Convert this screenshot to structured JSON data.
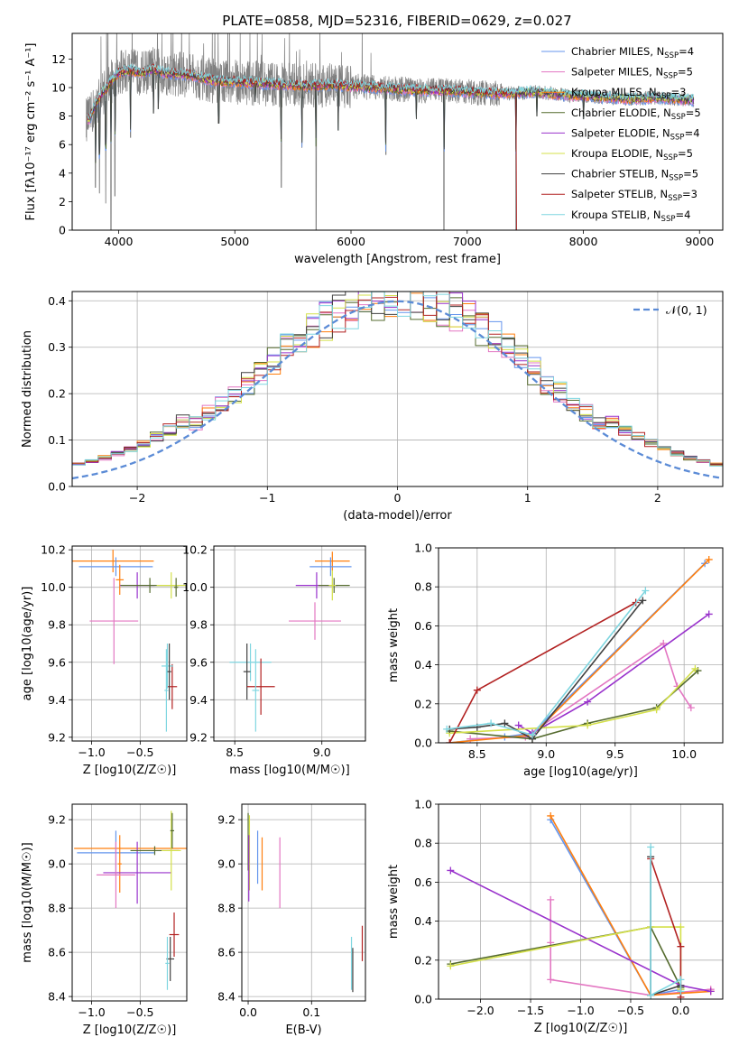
{
  "figure_title": "PLATE=0858, MJD=52316, FIBERID=0629, z=0.027",
  "colors": {
    "Chabrier MILES": "#6495ed",
    "Salpeter MILES": "#e377c2",
    "Kroupa MILES": "#ff7f0e",
    "Chabrier ELODIE": "#556b2f",
    "Salpeter ELODIE": "#9932cc",
    "Kroupa ELODIE": "#d4e04a",
    "Chabrier STELIB": "#404040",
    "Salpeter STELIB": "#b22222",
    "Kroupa STELIB": "#7fd6e0",
    "observed": "#808080",
    "normal": "#5b8bd6"
  },
  "chart_data": [
    {
      "type": "line",
      "panel": "spectrum",
      "xlabel": "wavelength [Angstrom, rest frame]",
      "ylabel": "Flux [fλ10⁻¹⁷ erg cm⁻² s⁻¹ A⁻¹]",
      "xlim": [
        3600,
        9200
      ],
      "ylim": [
        0,
        13.8
      ],
      "xticks": [
        4000,
        5000,
        6000,
        7000,
        8000,
        9000
      ],
      "yticks": [
        0,
        2,
        4,
        6,
        8,
        10,
        12
      ],
      "grid": false,
      "legend_position": "top-right",
      "legend": [
        {
          "label": "Chabrier MILES, N",
          "sub": "SSP",
          "tail": "=4"
        },
        {
          "label": "Salpeter MILES, N",
          "sub": "SSP",
          "tail": "=5"
        },
        {
          "label": "Kroupa MILES, N",
          "sub": "SSP",
          "tail": "=3"
        },
        {
          "label": "Chabrier ELODIE, N",
          "sub": "SSP",
          "tail": "=5"
        },
        {
          "label": "Salpeter ELODIE, N",
          "sub": "SSP",
          "tail": "=4"
        },
        {
          "label": "Kroupa ELODIE, N",
          "sub": "SSP",
          "tail": "=5"
        },
        {
          "label": "Chabrier STELIB, N",
          "sub": "SSP",
          "tail": "=5"
        },
        {
          "label": "Salpeter STELIB, N",
          "sub": "SSP",
          "tail": "=3"
        },
        {
          "label": "Kroupa STELIB, N",
          "sub": "SSP",
          "tail": "=4"
        }
      ],
      "continuum": {
        "x": [
          3750,
          3800,
          3850,
          3900,
          3950,
          4000,
          4100,
          4200,
          4300,
          4400,
          4600,
          4800,
          5000,
          5200,
          5400,
          5600,
          5800,
          6000,
          6200,
          6400,
          6600,
          6800,
          7000,
          7200,
          7400,
          7600,
          7800,
          8000,
          8200,
          8400,
          8600,
          8800,
          9000
        ],
        "y": [
          7.8,
          8.8,
          9.5,
          10.0,
          10.6,
          11.0,
          11.2,
          11.0,
          11.3,
          11.0,
          10.9,
          10.5,
          10.4,
          10.3,
          10.2,
          10.1,
          10.2,
          10.1,
          10.0,
          9.9,
          9.8,
          9.8,
          9.7,
          9.6,
          9.6,
          9.7,
          9.5,
          9.4,
          9.3,
          9.2,
          9.3,
          9.2,
          9.1
        ]
      },
      "absorption_dips": [
        {
          "x": 3800,
          "y": 3.0
        },
        {
          "x": 3835,
          "y": 2.6
        },
        {
          "x": 3889,
          "y": 1.9
        },
        {
          "x": 3934,
          "y": 0.0
        },
        {
          "x": 3968,
          "y": 2.4
        },
        {
          "x": 4102,
          "y": 6.5
        },
        {
          "x": 4300,
          "y": 8.2
        },
        {
          "x": 4340,
          "y": 8.5
        },
        {
          "x": 4861,
          "y": 7.5
        },
        {
          "x": 5175,
          "y": 9.0
        },
        {
          "x": 5400,
          "y": 3.0
        },
        {
          "x": 5577,
          "y": 5.8
        },
        {
          "x": 5700,
          "y": 0.0
        },
        {
          "x": 5890,
          "y": 7.0
        },
        {
          "x": 6300,
          "y": 5.3
        },
        {
          "x": 6563,
          "y": 7.8
        },
        {
          "x": 6800,
          "y": 0.0
        },
        {
          "x": 7420,
          "y": 0.0
        },
        {
          "x": 7600,
          "y": 8.0
        },
        {
          "x": 8000,
          "y": 7.8
        }
      ]
    },
    {
      "type": "histogram",
      "panel": "residuals",
      "xlabel": "(data-model)/error",
      "ylabel": "Normed distribution",
      "xlim": [
        -2.5,
        2.5
      ],
      "ylim": [
        0,
        0.42
      ],
      "xticks": [
        -2,
        -1,
        0,
        1,
        2
      ],
      "yticks": [
        0.0,
        0.1,
        0.2,
        0.3,
        0.4
      ],
      "grid": true,
      "legend_position": "top-right",
      "legend": "𝒩(0, 1)",
      "bin_width": 0.1,
      "reference": "normal pdf mean 0 sigma 1"
    },
    {
      "type": "errorbar",
      "panel": "age-vs-Z",
      "xlabel": "Z [log10(Z/Z☉)]",
      "ylabel": "age [log10(age/yr)]",
      "xlim": [
        -1.2,
        -0.02
      ],
      "ylim": [
        9.18,
        10.22
      ],
      "xticks": [
        -1.0,
        -0.5
      ],
      "yticks": [
        9.2,
        9.4,
        9.6,
        9.8,
        10.0,
        10.2
      ],
      "grid": true,
      "points": [
        {
          "model": "Kroupa MILES",
          "x": -0.78,
          "xerr": 0.42,
          "y": 10.14,
          "yerr": 0.06
        },
        {
          "model": "Chabrier MILES",
          "x": -0.75,
          "xerr": 0.38,
          "y": 10.11,
          "yerr": 0.05
        },
        {
          "model": "Kroupa MILES",
          "x": -0.71,
          "xerr": 0.04,
          "y": 10.04,
          "yerr": 0.08
        },
        {
          "model": "Salpeter ELODIE",
          "x": -0.53,
          "xerr": 0.18,
          "y": 10.01,
          "yerr": 0.07
        },
        {
          "model": "Chabrier ELODIE",
          "x": -0.4,
          "xerr": 0.3,
          "y": 10.01,
          "yerr": 0.04
        },
        {
          "model": "Kroupa ELODIE",
          "x": -0.18,
          "xerr": 0.15,
          "y": 10.01,
          "yerr": 0.07
        },
        {
          "model": "Chabrier ELODIE",
          "x": -0.13,
          "xerr": 0.02,
          "y": 10.0,
          "yerr": 0.05
        },
        {
          "model": "Salpeter MILES",
          "x": -0.77,
          "xerr": 0.25,
          "y": 9.82,
          "yerr": 0.23
        },
        {
          "model": "Salpeter STELIB",
          "x": -0.17,
          "xerr": 0.05,
          "y": 9.47,
          "yerr": 0.12
        },
        {
          "model": "Kroupa STELIB",
          "x": -0.22,
          "xerr": 0.06,
          "y": 9.58,
          "yerr": 0.12
        },
        {
          "model": "Chabrier STELIB",
          "x": -0.2,
          "xerr": 0.02,
          "y": 9.55,
          "yerr": 0.15
        },
        {
          "model": "Kroupa STELIB",
          "x": -0.23,
          "xerr": 0.02,
          "y": 9.45,
          "yerr": 0.22
        }
      ]
    },
    {
      "type": "errorbar",
      "panel": "age-vs-mass",
      "xlabel": "mass [log10(M/M☉)]",
      "ylabel": "",
      "xlim": [
        8.38,
        9.25
      ],
      "ylim": [
        9.18,
        10.22
      ],
      "xticks": [
        8.5,
        9.0
      ],
      "yticks": [
        9.2,
        9.4,
        9.6,
        9.8,
        10.0,
        10.2
      ],
      "grid": true,
      "points": [
        {
          "model": "Kroupa MILES",
          "x": 9.06,
          "xerr": 0.1,
          "y": 10.14,
          "yerr": 0.05
        },
        {
          "model": "Chabrier MILES",
          "x": 9.05,
          "xerr": 0.12,
          "y": 10.11,
          "yerr": 0.05
        },
        {
          "model": "Salpeter ELODIE",
          "x": 8.97,
          "xerr": 0.12,
          "y": 10.01,
          "yerr": 0.07
        },
        {
          "model": "Chabrier ELODIE",
          "x": 9.07,
          "xerr": 0.09,
          "y": 10.01,
          "yerr": 0.04
        },
        {
          "model": "Kroupa ELODIE",
          "x": 9.06,
          "xerr": 0.02,
          "y": 10.01,
          "yerr": 0.08
        },
        {
          "model": "Salpeter MILES",
          "x": 8.96,
          "xerr": 0.15,
          "y": 9.82,
          "yerr": 0.1
        },
        {
          "model": "Kroupa STELIB",
          "x": 8.59,
          "xerr": 0.12,
          "y": 9.6,
          "yerr": 0.1
        },
        {
          "model": "Chabrier STELIB",
          "x": 8.57,
          "xerr": 0.02,
          "y": 9.55,
          "yerr": 0.15
        },
        {
          "model": "Salpeter STELIB",
          "x": 8.65,
          "xerr": 0.08,
          "y": 9.47,
          "yerr": 0.15
        },
        {
          "model": "Kroupa STELIB",
          "x": 8.62,
          "xerr": 0.02,
          "y": 9.45,
          "yerr": 0.22
        }
      ]
    },
    {
      "type": "line",
      "panel": "weight-vs-age",
      "xlabel": "age [log10(age/yr)]",
      "ylabel": "mass weight",
      "xlim": [
        8.22,
        10.28
      ],
      "ylim": [
        0,
        1.0
      ],
      "xticks": [
        8.5,
        9.0,
        9.5,
        10.0
      ],
      "yticks": [
        0.0,
        0.2,
        0.4,
        0.6,
        0.8,
        1.0
      ],
      "grid": true,
      "series": [
        {
          "model": "Chabrier MILES",
          "x": [
            8.3,
            8.7,
            8.9,
            10.15
          ],
          "y": [
            0.0,
            0.03,
            0.05,
            0.92
          ]
        },
        {
          "model": "Salpeter MILES",
          "x": [
            8.45,
            8.85,
            9.85,
            9.95,
            10.05
          ],
          "y": [
            0.02,
            0.03,
            0.51,
            0.29,
            0.18
          ]
        },
        {
          "model": "Kroupa MILES",
          "x": [
            8.3,
            8.9,
            10.18
          ],
          "y": [
            0.0,
            0.04,
            0.94
          ]
        },
        {
          "model": "Chabrier ELODIE",
          "x": [
            8.3,
            8.9,
            9.3,
            9.8,
            10.1
          ],
          "y": [
            0.06,
            0.02,
            0.1,
            0.18,
            0.37
          ]
        },
        {
          "model": "Salpeter ELODIE",
          "x": [
            8.8,
            8.9,
            9.3,
            10.18
          ],
          "y": [
            0.09,
            0.05,
            0.21,
            0.66
          ]
        },
        {
          "model": "Kroupa ELODIE",
          "x": [
            8.3,
            9.3,
            9.8,
            10.08
          ],
          "y": [
            0.05,
            0.09,
            0.17,
            0.38
          ]
        },
        {
          "model": "Chabrier STELIB",
          "x": [
            8.3,
            8.5,
            8.7,
            8.9,
            9.7
          ],
          "y": [
            0.07,
            0.08,
            0.1,
            0.02,
            0.73
          ]
        },
        {
          "model": "Salpeter STELIB",
          "x": [
            8.3,
            8.5,
            9.65
          ],
          "y": [
            0.0,
            0.27,
            0.72
          ]
        },
        {
          "model": "Kroupa STELIB",
          "x": [
            8.28,
            8.6,
            8.9,
            9.72
          ],
          "y": [
            0.07,
            0.1,
            0.04,
            0.78
          ]
        }
      ]
    },
    {
      "type": "errorbar",
      "panel": "mass-vs-Z",
      "xlabel": "Z [log10(Z/Z☉)]",
      "ylabel": "mass [log10(M/M☉)]",
      "xlim": [
        -1.2,
        -0.02
      ],
      "ylim": [
        8.38,
        9.27
      ],
      "xticks": [
        -1.0,
        -0.5
      ],
      "yticks": [
        8.4,
        8.6,
        8.8,
        9.0,
        9.2
      ],
      "grid": true,
      "points": [
        {
          "model": "Kroupa MILES",
          "x": -0.6,
          "xerr": 0.58,
          "y": 9.07,
          "yerr": 0.0
        },
        {
          "model": "Chabrier MILES",
          "x": -0.75,
          "xerr": 0.4,
          "y": 9.05,
          "yerr": 0.1
        },
        {
          "model": "Kroupa MILES",
          "x": -0.71,
          "xerr": 0.02,
          "y": 9.0,
          "yerr": 0.13
        },
        {
          "model": "Salpeter ELODIE",
          "x": -0.53,
          "xerr": 0.35,
          "y": 8.96,
          "yerr": 0.14
        },
        {
          "model": "Salpeter MILES",
          "x": -0.75,
          "xerr": 0.2,
          "y": 8.95,
          "yerr": 0.15
        },
        {
          "model": "Chabrier ELODIE",
          "x": -0.35,
          "xerr": 0.25,
          "y": 9.06,
          "yerr": 0.02
        },
        {
          "model": "Kroupa ELODIE",
          "x": -0.18,
          "xerr": 0.1,
          "y": 9.06,
          "yerr": 0.18
        },
        {
          "model": "Chabrier ELODIE",
          "x": -0.17,
          "xerr": 0.02,
          "y": 9.15,
          "yerr": 0.08
        },
        {
          "model": "Salpeter STELIB",
          "x": -0.15,
          "xerr": 0.05,
          "y": 8.68,
          "yerr": 0.1
        },
        {
          "model": "Chabrier STELIB",
          "x": -0.19,
          "xerr": 0.04,
          "y": 8.57,
          "yerr": 0.1
        },
        {
          "model": "Kroupa STELIB",
          "x": -0.22,
          "xerr": 0.02,
          "y": 8.55,
          "yerr": 0.12
        }
      ]
    },
    {
      "type": "errorbar",
      "panel": "mass-vs-EBV",
      "xlabel": "E(B-V)",
      "ylabel": "",
      "xlim": [
        -0.01,
        0.185
      ],
      "ylim": [
        8.38,
        9.27
      ],
      "xticks": [
        0.0,
        0.1
      ],
      "yticks": [
        8.4,
        8.6,
        8.8,
        9.0,
        9.2
      ],
      "grid": true,
      "points": [
        {
          "model": "Chabrier ELODIE",
          "x": 0.0,
          "xerr": 0.0,
          "y": 9.1,
          "yerr": 0.13
        },
        {
          "model": "Kroupa ELODIE",
          "x": 0.002,
          "xerr": 0.0,
          "y": 9.05,
          "yerr": 0.17
        },
        {
          "model": "Salpeter ELODIE",
          "x": 0.001,
          "xerr": 0.0,
          "y": 8.98,
          "yerr": 0.15
        },
        {
          "model": "Chabrier MILES",
          "x": 0.015,
          "xerr": 0.0,
          "y": 9.03,
          "yerr": 0.12
        },
        {
          "model": "Kroupa MILES",
          "x": 0.022,
          "xerr": 0.0,
          "y": 9.0,
          "yerr": 0.12
        },
        {
          "model": "Salpeter MILES",
          "x": 0.05,
          "xerr": 0.0,
          "y": 8.96,
          "yerr": 0.16
        },
        {
          "model": "Kroupa STELIB",
          "x": 0.163,
          "xerr": 0.0,
          "y": 8.55,
          "yerr": 0.12
        },
        {
          "model": "Chabrier STELIB",
          "x": 0.165,
          "xerr": 0.0,
          "y": 8.52,
          "yerr": 0.1
        },
        {
          "model": "Salpeter STELIB",
          "x": 0.18,
          "xerr": 0.0,
          "y": 8.64,
          "yerr": 0.08
        }
      ]
    },
    {
      "type": "line",
      "panel": "weight-vs-Z",
      "xlabel": "Z [log10(Z/Z☉)]",
      "ylabel": "mass weight",
      "xlim": [
        -2.42,
        0.42
      ],
      "ylim": [
        0,
        1.0
      ],
      "xticks": [
        -2.0,
        -1.5,
        -1.0,
        -0.5,
        0.0
      ],
      "yticks": [
        0.0,
        0.2,
        0.4,
        0.6,
        0.8,
        1.0
      ],
      "grid": true,
      "series": [
        {
          "model": "Chabrier MILES",
          "x": [
            -1.3,
            -0.3,
            0.0
          ],
          "y": [
            0.92,
            0.02,
            0.05
          ]
        },
        {
          "model": "Salpeter MILES",
          "x": [
            -1.3,
            -1.3,
            -1.3,
            -0.3,
            0.3
          ],
          "y": [
            0.51,
            0.29,
            0.1,
            0.02,
            0.05
          ]
        },
        {
          "model": "Kroupa MILES",
          "x": [
            -1.3,
            -0.3,
            0.0,
            0.3
          ],
          "y": [
            0.94,
            0.02,
            0.03,
            0.04
          ]
        },
        {
          "model": "Chabrier ELODIE",
          "x": [
            -2.3,
            -0.3,
            0.0
          ],
          "y": [
            0.18,
            0.37,
            0.06
          ]
        },
        {
          "model": "Salpeter ELODIE",
          "x": [
            -2.3,
            0.0,
            0.3
          ],
          "y": [
            0.66,
            0.07,
            0.04
          ]
        },
        {
          "model": "Kroupa ELODIE",
          "x": [
            -2.3,
            -0.3,
            0.0,
            0.0
          ],
          "y": [
            0.17,
            0.37,
            0.37,
            0.05
          ]
        },
        {
          "model": "Chabrier STELIB",
          "x": [
            -0.3,
            -0.3,
            0.0
          ],
          "y": [
            0.73,
            0.02,
            0.07
          ]
        },
        {
          "model": "Salpeter STELIB",
          "x": [
            -0.3,
            0.0,
            0.0
          ],
          "y": [
            0.72,
            0.27,
            0.01
          ]
        },
        {
          "model": "Kroupa STELIB",
          "x": [
            -0.3,
            -0.3,
            0.0,
            0.0
          ],
          "y": [
            0.78,
            0.02,
            0.1,
            0.04
          ]
        }
      ]
    }
  ]
}
